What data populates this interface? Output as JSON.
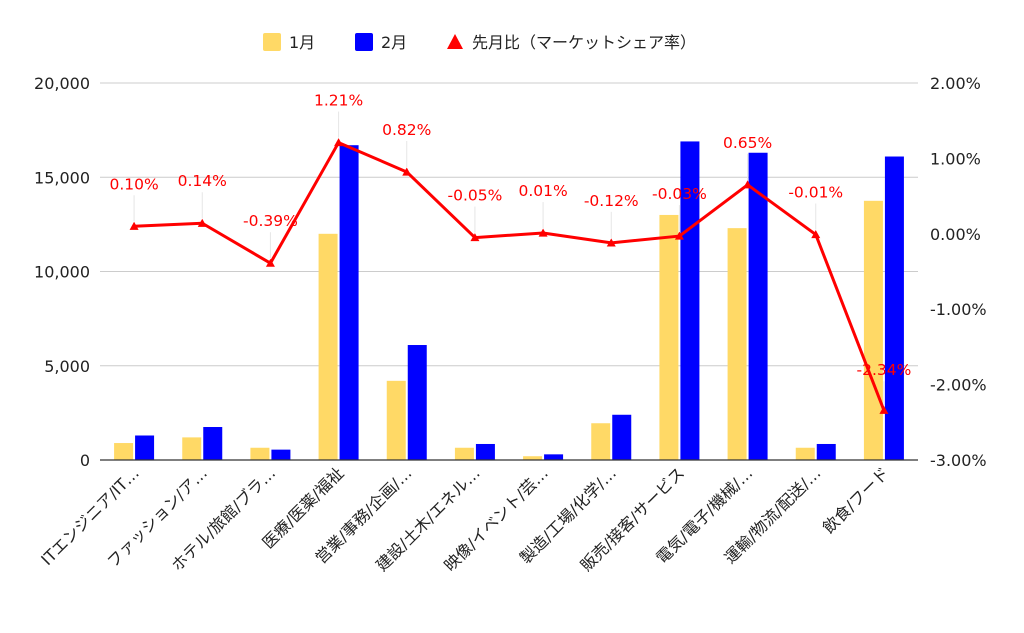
{
  "chart_data": {
    "type": "bar",
    "title": "",
    "categories": [
      "ITエンジニア/IT…",
      "ファッション/ア…",
      "ホテル/旅館/ブラ…",
      "医療/医薬/福祉",
      "営業/事務/企画/…",
      "建設/土木/エネル…",
      "映像/イベント/芸…",
      "製造/工場/化学/…",
      "販売/接客/サービス",
      "電気/電子/機械/…",
      "運輸/物流/配送/…",
      "飲食/フード"
    ],
    "series": [
      {
        "name": "1月",
        "color": "#ffd966",
        "axis": "left",
        "values": [
          900,
          1200,
          650,
          12000,
          4200,
          650,
          200,
          1950,
          13000,
          12300,
          650,
          13750
        ]
      },
      {
        "name": "2月",
        "color": "#0000ff",
        "axis": "left",
        "values": [
          1300,
          1750,
          550,
          16700,
          6100,
          850,
          300,
          2400,
          16900,
          16300,
          850,
          16100
        ]
      }
    ],
    "line_series": {
      "name": "先月比（マーケットシェア率）",
      "color": "#ff0000",
      "axis": "right",
      "marker": "triangle",
      "values": [
        0.1,
        0.14,
        -0.39,
        1.21,
        0.82,
        -0.05,
        0.01,
        -0.12,
        -0.03,
        0.65,
        -0.01,
        -2.34
      ],
      "labels": [
        "0.10%",
        "0.14%",
        "-0.39%",
        "1.21%",
        "0.82%",
        "-0.05%",
        "0.01%",
        "-0.12%",
        "-0.03%",
        "0.65%",
        "-0.01%",
        "-2.34%"
      ]
    },
    "y_left": {
      "range": [
        0,
        20000
      ],
      "ticks": [
        "0",
        "5,000",
        "10,000",
        "15,000",
        "20,000"
      ],
      "tick_values": [
        0,
        5000,
        10000,
        15000,
        20000
      ]
    },
    "y_right": {
      "range": [
        -3.0,
        2.0
      ],
      "ticks": [
        "-3.00%",
        "-2.00%",
        "-1.00%",
        "0.00%",
        "1.00%",
        "2.00%"
      ],
      "tick_values": [
        -3,
        -2,
        -1,
        0,
        1,
        2
      ]
    },
    "grid": true,
    "legend_position": "top-center"
  }
}
